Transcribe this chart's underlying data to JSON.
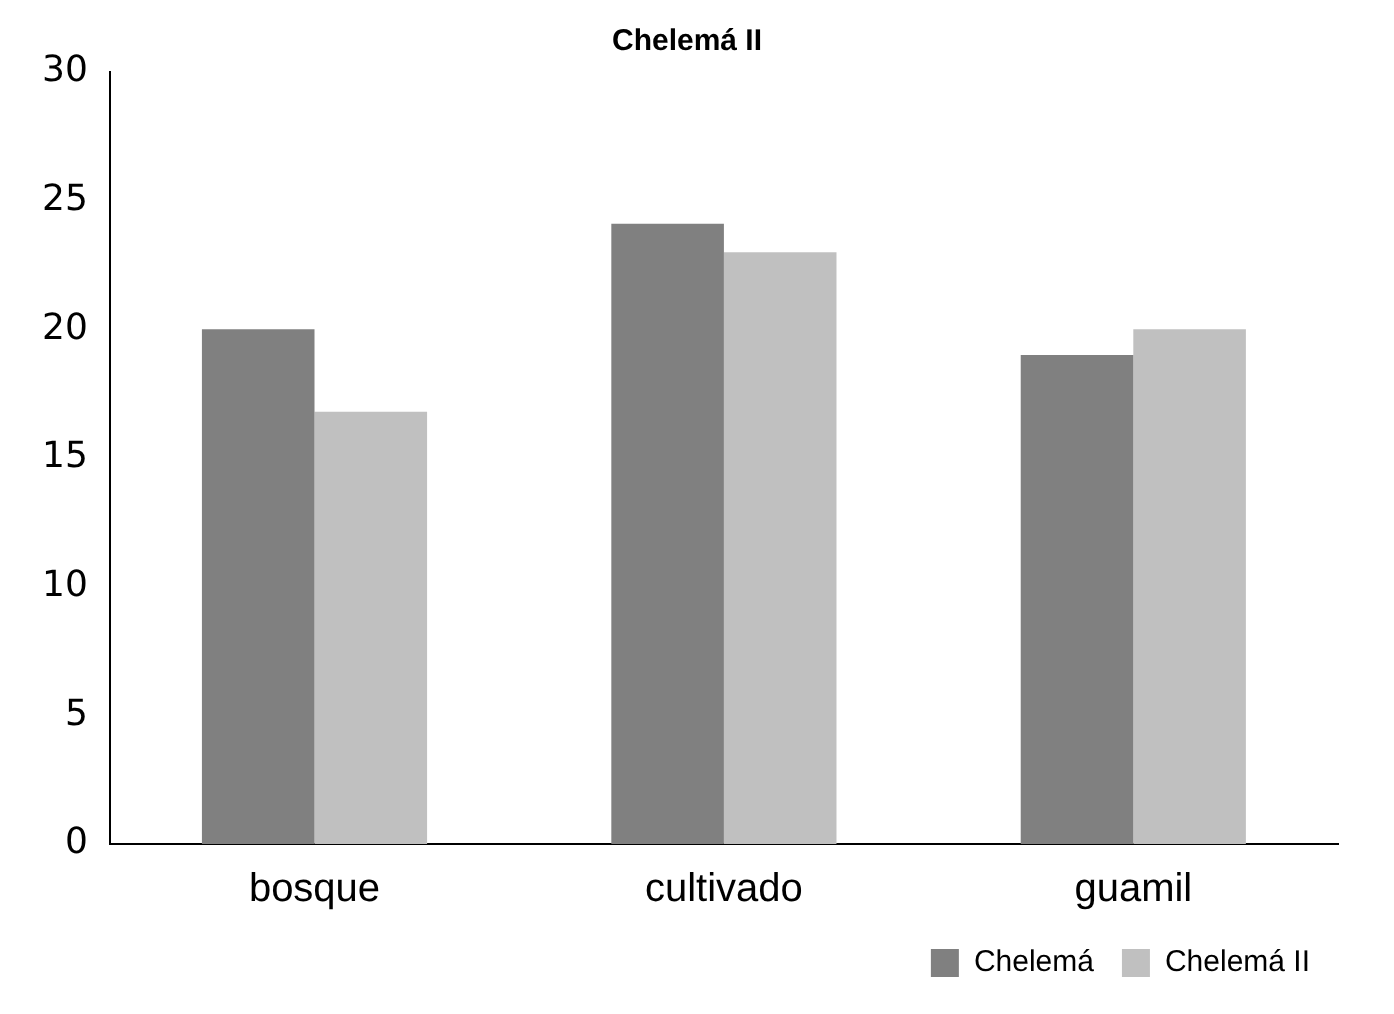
{
  "chart_data": {
    "type": "bar",
    "title": "Chelemá II",
    "categories": [
      "bosque",
      "cultivado",
      "guamil"
    ],
    "series": [
      {
        "name": "Chelemá",
        "color": "#808080",
        "values": [
          20,
          24.1,
          19
        ]
      },
      {
        "name": "Chelemá II",
        "color": "#c0c0c0",
        "values": [
          16.8,
          23,
          20
        ]
      }
    ],
    "ylim": [
      0,
      30
    ],
    "yticks": [
      0,
      5,
      10,
      15,
      20,
      25,
      30
    ],
    "grid": false,
    "legend": "bottom right"
  }
}
